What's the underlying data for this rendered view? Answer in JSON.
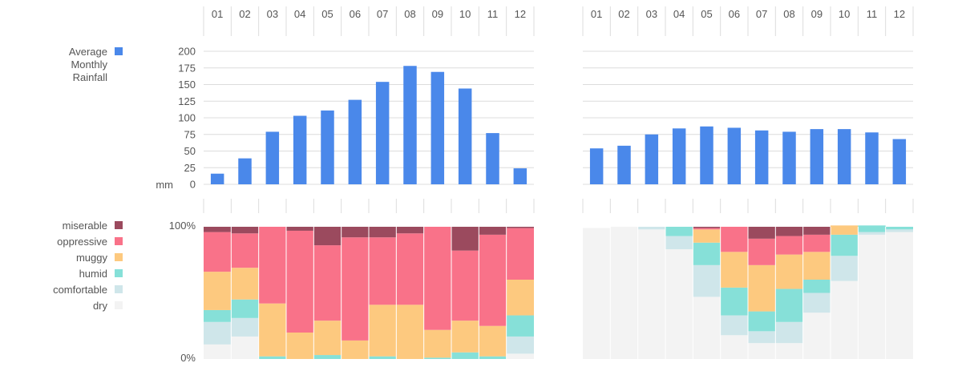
{
  "chart_data": {
    "type": "bar",
    "months": [
      "01",
      "02",
      "03",
      "04",
      "05",
      "06",
      "07",
      "08",
      "09",
      "10",
      "11",
      "12"
    ],
    "colors": {
      "rain": "#4a88ea",
      "miserable": "#9b4a5e",
      "oppressive": "#f97289",
      "muggy": "#fdc97f",
      "humid": "#86e0d8",
      "comfortable": "#cfe6ea",
      "dry": "#f3f3f3",
      "grid": "#dcdcdc",
      "text": "#555555"
    },
    "rainfall": {
      "title_lines": [
        "Average",
        "Monthly",
        "Rainfall"
      ],
      "unit": "mm",
      "yticks": [
        "200",
        "175",
        "150",
        "125",
        "100",
        "75",
        "50",
        "25",
        "0"
      ],
      "ylim": [
        0,
        200
      ],
      "left_values": [
        16,
        39,
        79,
        103,
        111,
        127,
        154,
        178,
        169,
        144,
        77,
        24
      ],
      "right_values": [
        54,
        58,
        75,
        84,
        87,
        85,
        81,
        79,
        83,
        83,
        78,
        68
      ]
    },
    "comfort": {
      "categories": [
        "miserable",
        "oppressive",
        "muggy",
        "humid",
        "comfortable",
        "dry"
      ],
      "labels": [
        "miserable",
        "oppressive",
        "muggy",
        "humid",
        "comfortable",
        "dry"
      ],
      "ytop_label": "100%",
      "ybottom_label": "0%",
      "left": [
        {
          "dry": 11,
          "comfortable": 17,
          "humid": 9,
          "muggy": 29,
          "oppressive": 30,
          "miserable": 4
        },
        {
          "dry": 17,
          "comfortable": 14,
          "humid": 14,
          "muggy": 24,
          "oppressive": 26,
          "miserable": 5
        },
        {
          "dry": 0,
          "comfortable": 0,
          "humid": 2,
          "muggy": 40,
          "oppressive": 58,
          "miserable": 0
        },
        {
          "dry": 0,
          "comfortable": 0,
          "humid": 0,
          "muggy": 20,
          "oppressive": 77,
          "miserable": 3
        },
        {
          "dry": 0,
          "comfortable": 0,
          "humid": 3,
          "muggy": 26,
          "oppressive": 57,
          "miserable": 14
        },
        {
          "dry": 0,
          "comfortable": 0,
          "humid": 0,
          "muggy": 14,
          "oppressive": 78,
          "miserable": 8
        },
        {
          "dry": 0,
          "comfortable": 0,
          "humid": 2,
          "muggy": 39,
          "oppressive": 51,
          "miserable": 8
        },
        {
          "dry": 0,
          "comfortable": 0,
          "humid": 0,
          "muggy": 41,
          "oppressive": 54,
          "miserable": 5
        },
        {
          "dry": 0,
          "comfortable": 0,
          "humid": 1,
          "muggy": 21,
          "oppressive": 78,
          "miserable": 0
        },
        {
          "dry": 0,
          "comfortable": 0,
          "humid": 5,
          "muggy": 24,
          "oppressive": 53,
          "miserable": 18
        },
        {
          "dry": 0,
          "comfortable": 0,
          "humid": 2,
          "muggy": 23,
          "oppressive": 69,
          "miserable": 6
        },
        {
          "dry": 4,
          "comfortable": 13,
          "humid": 16,
          "muggy": 27,
          "oppressive": 39,
          "miserable": 1
        }
      ],
      "right": [
        {
          "dry": 99,
          "comfortable": 0,
          "humid": 0,
          "muggy": 0,
          "oppressive": 0,
          "miserable": 0
        },
        {
          "dry": 100,
          "comfortable": 0,
          "humid": 0,
          "muggy": 0,
          "oppressive": 0,
          "miserable": 0
        },
        {
          "dry": 98,
          "comfortable": 2,
          "humid": 0,
          "muggy": 0,
          "oppressive": 0,
          "miserable": 0
        },
        {
          "dry": 83,
          "comfortable": 10,
          "humid": 7,
          "muggy": 0,
          "oppressive": 0,
          "miserable": 0
        },
        {
          "dry": 47,
          "comfortable": 24,
          "humid": 17,
          "muggy": 10,
          "oppressive": 1,
          "miserable": 1
        },
        {
          "dry": 18,
          "comfortable": 15,
          "humid": 21,
          "muggy": 27,
          "oppressive": 19,
          "miserable": 0
        },
        {
          "dry": 12,
          "comfortable": 9,
          "humid": 15,
          "muggy": 35,
          "oppressive": 20,
          "miserable": 9
        },
        {
          "dry": 12,
          "comfortable": 16,
          "humid": 25,
          "muggy": 26,
          "oppressive": 14,
          "miserable": 7
        },
        {
          "dry": 35,
          "comfortable": 15,
          "humid": 10,
          "muggy": 21,
          "oppressive": 13,
          "miserable": 6
        },
        {
          "dry": 59,
          "comfortable": 19,
          "humid": 16,
          "muggy": 7,
          "oppressive": 0,
          "miserable": 0
        },
        {
          "dry": 94,
          "comfortable": 2,
          "humid": 5,
          "muggy": 0,
          "oppressive": 0,
          "miserable": 0
        },
        {
          "dry": 96,
          "comfortable": 2,
          "humid": 2,
          "muggy": 0,
          "oppressive": 0,
          "miserable": 0
        }
      ]
    }
  }
}
